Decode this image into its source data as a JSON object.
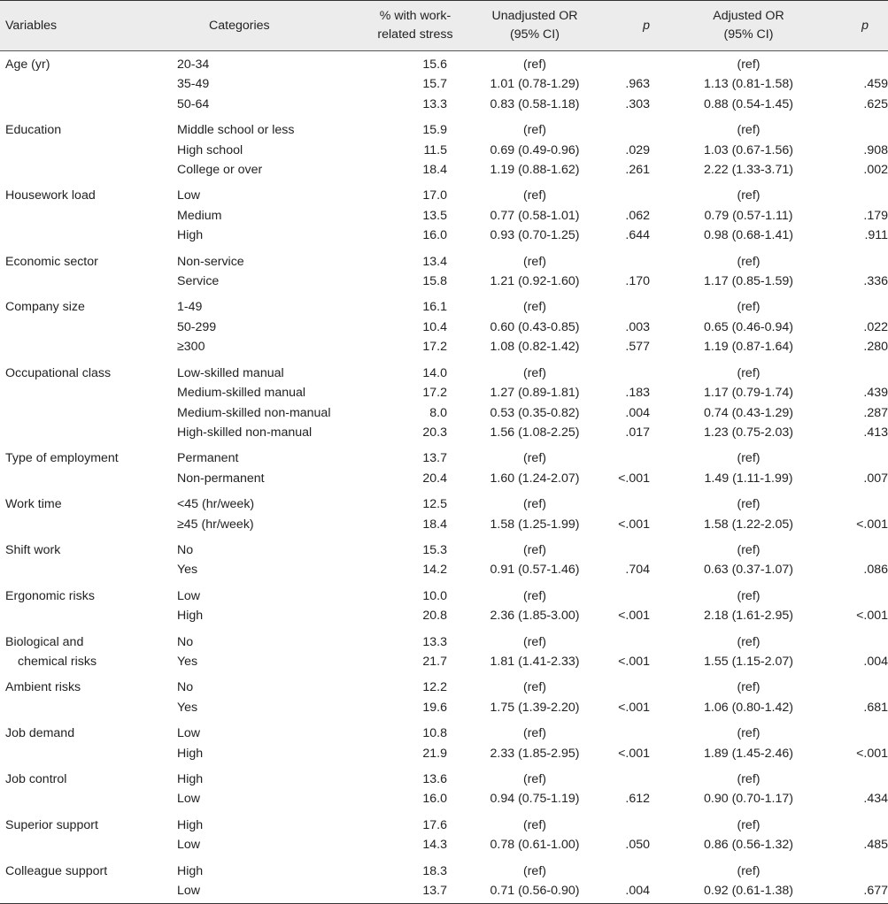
{
  "table": {
    "headers": {
      "variables": "Variables",
      "categories": "Categories",
      "pct_line1": "% with work-",
      "pct_line2": "related stress",
      "unadj_line1": "Unadjusted OR",
      "unadj_line2": "(95% CI)",
      "p1": "p",
      "adj_line1": "Adjusted OR",
      "adj_line2": "(95% CI)",
      "p2": "p"
    },
    "groups": [
      {
        "variable": "Age (yr)",
        "rows": [
          {
            "category": "20-34",
            "pct": "15.6",
            "unadj": "(ref)",
            "p1": "",
            "adj": "(ref)",
            "p2": ""
          },
          {
            "category": "35-49",
            "pct": "15.7",
            "unadj": "1.01 (0.78-1.29)",
            "p1": ".963",
            "adj": "1.13 (0.81-1.58)",
            "p2": ".459"
          },
          {
            "category": "50-64",
            "pct": "13.3",
            "unadj": "0.83 (0.58-1.18)",
            "p1": ".303",
            "adj": "0.88 (0.54-1.45)",
            "p2": ".625"
          }
        ]
      },
      {
        "variable": "Education",
        "rows": [
          {
            "category": "Middle school or less",
            "pct": "15.9",
            "unadj": "(ref)",
            "p1": "",
            "adj": "(ref)",
            "p2": ""
          },
          {
            "category": "High school",
            "pct": "11.5",
            "unadj": "0.69 (0.49-0.96)",
            "p1": ".029",
            "adj": "1.03 (0.67-1.56)",
            "p2": ".908"
          },
          {
            "category": "College or over",
            "pct": "18.4",
            "unadj": "1.19 (0.88-1.62)",
            "p1": ".261",
            "adj": "2.22 (1.33-3.71)",
            "p2": ".002"
          }
        ]
      },
      {
        "variable": "Housework load",
        "rows": [
          {
            "category": "Low",
            "pct": "17.0",
            "unadj": "(ref)",
            "p1": "",
            "adj": "(ref)",
            "p2": ""
          },
          {
            "category": "Medium",
            "pct": "13.5",
            "unadj": "0.77 (0.58-1.01)",
            "p1": ".062",
            "adj": "0.79 (0.57-1.11)",
            "p2": ".179"
          },
          {
            "category": "High",
            "pct": "16.0",
            "unadj": "0.93 (0.70-1.25)",
            "p1": ".644",
            "adj": "0.98 (0.68-1.41)",
            "p2": ".911"
          }
        ]
      },
      {
        "variable": "Economic sector",
        "rows": [
          {
            "category": "Non-service",
            "pct": "13.4",
            "unadj": "(ref)",
            "p1": "",
            "adj": "(ref)",
            "p2": ""
          },
          {
            "category": "Service",
            "pct": "15.8",
            "unadj": "1.21 (0.92-1.60)",
            "p1": ".170",
            "adj": "1.17 (0.85-1.59)",
            "p2": ".336"
          }
        ]
      },
      {
        "variable": "Company size",
        "rows": [
          {
            "category": "1-49",
            "pct": "16.1",
            "unadj": "(ref)",
            "p1": "",
            "adj": "(ref)",
            "p2": ""
          },
          {
            "category": "50-299",
            "pct": "10.4",
            "unadj": "0.60 (0.43-0.85)",
            "p1": ".003",
            "adj": "0.65 (0.46-0.94)",
            "p2": ".022"
          },
          {
            "category": "≥300",
            "pct": "17.2",
            "unadj": "1.08 (0.82-1.42)",
            "p1": ".577",
            "adj": "1.19 (0.87-1.64)",
            "p2": ".280"
          }
        ]
      },
      {
        "variable": "Occupational class",
        "rows": [
          {
            "category": "Low-skilled manual",
            "pct": "14.0",
            "unadj": "(ref)",
            "p1": "",
            "adj": "(ref)",
            "p2": ""
          },
          {
            "category": "Medium-skilled manual",
            "pct": "17.2",
            "unadj": "1.27 (0.89-1.81)",
            "p1": ".183",
            "adj": "1.17 (0.79-1.74)",
            "p2": ".439"
          },
          {
            "category": "Medium-skilled non-manual",
            "pct": "8.0",
            "unadj": "0.53 (0.35-0.82)",
            "p1": ".004",
            "adj": "0.74 (0.43-1.29)",
            "p2": ".287"
          },
          {
            "category": "High-skilled non-manual",
            "pct": "20.3",
            "unadj": "1.56 (1.08-2.25)",
            "p1": ".017",
            "adj": "1.23 (0.75-2.03)",
            "p2": ".413"
          }
        ]
      },
      {
        "variable": "Type of employment",
        "rows": [
          {
            "category": "Permanent",
            "pct": "13.7",
            "unadj": "(ref)",
            "p1": "",
            "adj": "(ref)",
            "p2": ""
          },
          {
            "category": "Non-permanent",
            "pct": "20.4",
            "unadj": "1.60 (1.24-2.07)",
            "p1": "<.001",
            "adj": "1.49 (1.11-1.99)",
            "p2": ".007"
          }
        ]
      },
      {
        "variable": "Work time",
        "rows": [
          {
            "category": "<45 (hr/week)",
            "pct": "12.5",
            "unadj": "(ref)",
            "p1": "",
            "adj": "(ref)",
            "p2": ""
          },
          {
            "category": "≥45 (hr/week)",
            "pct": "18.4",
            "unadj": "1.58 (1.25-1.99)",
            "p1": "<.001",
            "adj": "1.58 (1.22-2.05)",
            "p2": "<.001"
          }
        ]
      },
      {
        "variable": "Shift work",
        "rows": [
          {
            "category": "No",
            "pct": "15.3",
            "unadj": "(ref)",
            "p1": "",
            "adj": "(ref)",
            "p2": ""
          },
          {
            "category": "Yes",
            "pct": "14.2",
            "unadj": "0.91 (0.57-1.46)",
            "p1": ".704",
            "adj": "0.63 (0.37-1.07)",
            "p2": ".086"
          }
        ]
      },
      {
        "variable": "Ergonomic risks",
        "rows": [
          {
            "category": "Low",
            "pct": "10.0",
            "unadj": "(ref)",
            "p1": "",
            "adj": "(ref)",
            "p2": ""
          },
          {
            "category": "High",
            "pct": "20.8",
            "unadj": "2.36 (1.85-3.00)",
            "p1": "<.001",
            "adj": "2.18 (1.61-2.95)",
            "p2": "<.001"
          }
        ]
      },
      {
        "variable": "Biological and",
        "variable_cont": "chemical risks",
        "rows": [
          {
            "category": "No",
            "pct": "13.3",
            "unadj": "(ref)",
            "p1": "",
            "adj": "(ref)",
            "p2": ""
          },
          {
            "category": "Yes",
            "pct": "21.7",
            "unadj": "1.81 (1.41-2.33)",
            "p1": "<.001",
            "adj": "1.55 (1.15-2.07)",
            "p2": ".004"
          }
        ]
      },
      {
        "variable": "Ambient risks",
        "rows": [
          {
            "category": "No",
            "pct": "12.2",
            "unadj": "(ref)",
            "p1": "",
            "adj": "(ref)",
            "p2": ""
          },
          {
            "category": "Yes",
            "pct": "19.6",
            "unadj": "1.75 (1.39-2.20)",
            "p1": "<.001",
            "adj": "1.06 (0.80-1.42)",
            "p2": ".681"
          }
        ]
      },
      {
        "variable": "Job demand",
        "rows": [
          {
            "category": "Low",
            "pct": "10.8",
            "unadj": "(ref)",
            "p1": "",
            "adj": "(ref)",
            "p2": ""
          },
          {
            "category": "High",
            "pct": "21.9",
            "unadj": "2.33 (1.85-2.95)",
            "p1": "<.001",
            "adj": "1.89 (1.45-2.46)",
            "p2": "<.001"
          }
        ]
      },
      {
        "variable": "Job control",
        "rows": [
          {
            "category": "High",
            "pct": "13.6",
            "unadj": "(ref)",
            "p1": "",
            "adj": "(ref)",
            "p2": ""
          },
          {
            "category": "Low",
            "pct": "16.0",
            "unadj": "0.94 (0.75-1.19)",
            "p1": ".612",
            "adj": "0.90 (0.70-1.17)",
            "p2": ".434"
          }
        ]
      },
      {
        "variable": "Superior support",
        "rows": [
          {
            "category": "High",
            "pct": "17.6",
            "unadj": "(ref)",
            "p1": "",
            "adj": "(ref)",
            "p2": ""
          },
          {
            "category": "Low",
            "pct": "14.3",
            "unadj": "0.78 (0.61-1.00)",
            "p1": ".050",
            "adj": "0.86 (0.56-1.32)",
            "p2": ".485"
          }
        ]
      },
      {
        "variable": "Colleague support",
        "rows": [
          {
            "category": "High",
            "pct": "18.3",
            "unadj": "(ref)",
            "p1": "",
            "adj": "(ref)",
            "p2": ""
          },
          {
            "category": "Low",
            "pct": "13.7",
            "unadj": "0.71 (0.56-0.90)",
            "p1": ".004",
            "adj": "0.92 (0.61-1.38)",
            "p2": ".677"
          }
        ]
      }
    ]
  }
}
